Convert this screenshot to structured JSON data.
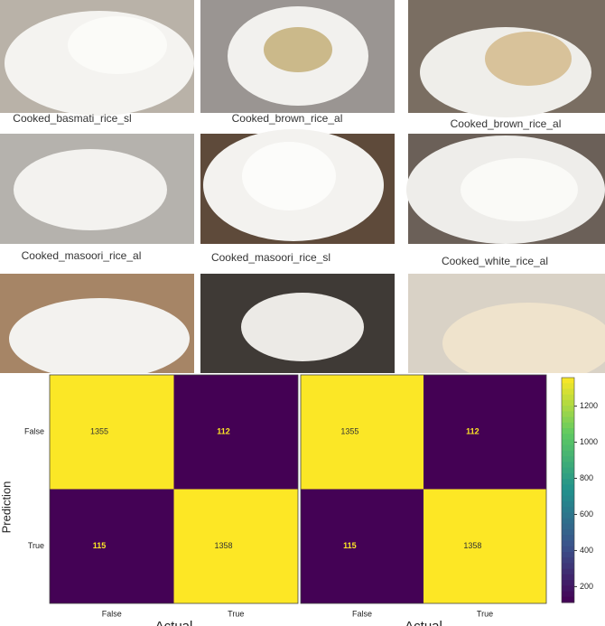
{
  "images": [
    {
      "caption": "Cooked_basmati_rice_sl"
    },
    {
      "caption": "Cooked_brown_rice_al"
    },
    {
      "caption": "Cooked_brown_rice_al"
    },
    {
      "caption": "Cooked_masoori_rice_al"
    },
    {
      "caption": "Cooked_masoori_rice_sl"
    },
    {
      "caption": "Cooked_white_rice_al"
    }
  ],
  "chart_data": [
    {
      "type": "heatmap",
      "ylabel": "Prediction",
      "xlabel": "Actual",
      "x_categories": [
        "False",
        "True"
      ],
      "y_categories": [
        "False",
        "True"
      ],
      "values": [
        [
          1355,
          112
        ],
        [
          115,
          1358
        ]
      ],
      "colormap": "viridis",
      "clim": [
        112,
        1358
      ]
    },
    {
      "type": "heatmap",
      "xlabel": "Actual",
      "x_categories": [
        "False",
        "True"
      ],
      "values": [
        [
          1355,
          112
        ],
        [
          115,
          1358
        ]
      ],
      "colormap": "viridis",
      "clim": [
        112,
        1358
      ],
      "colorbar_ticks": [
        200,
        400,
        600,
        800,
        1000,
        1200
      ]
    }
  ]
}
